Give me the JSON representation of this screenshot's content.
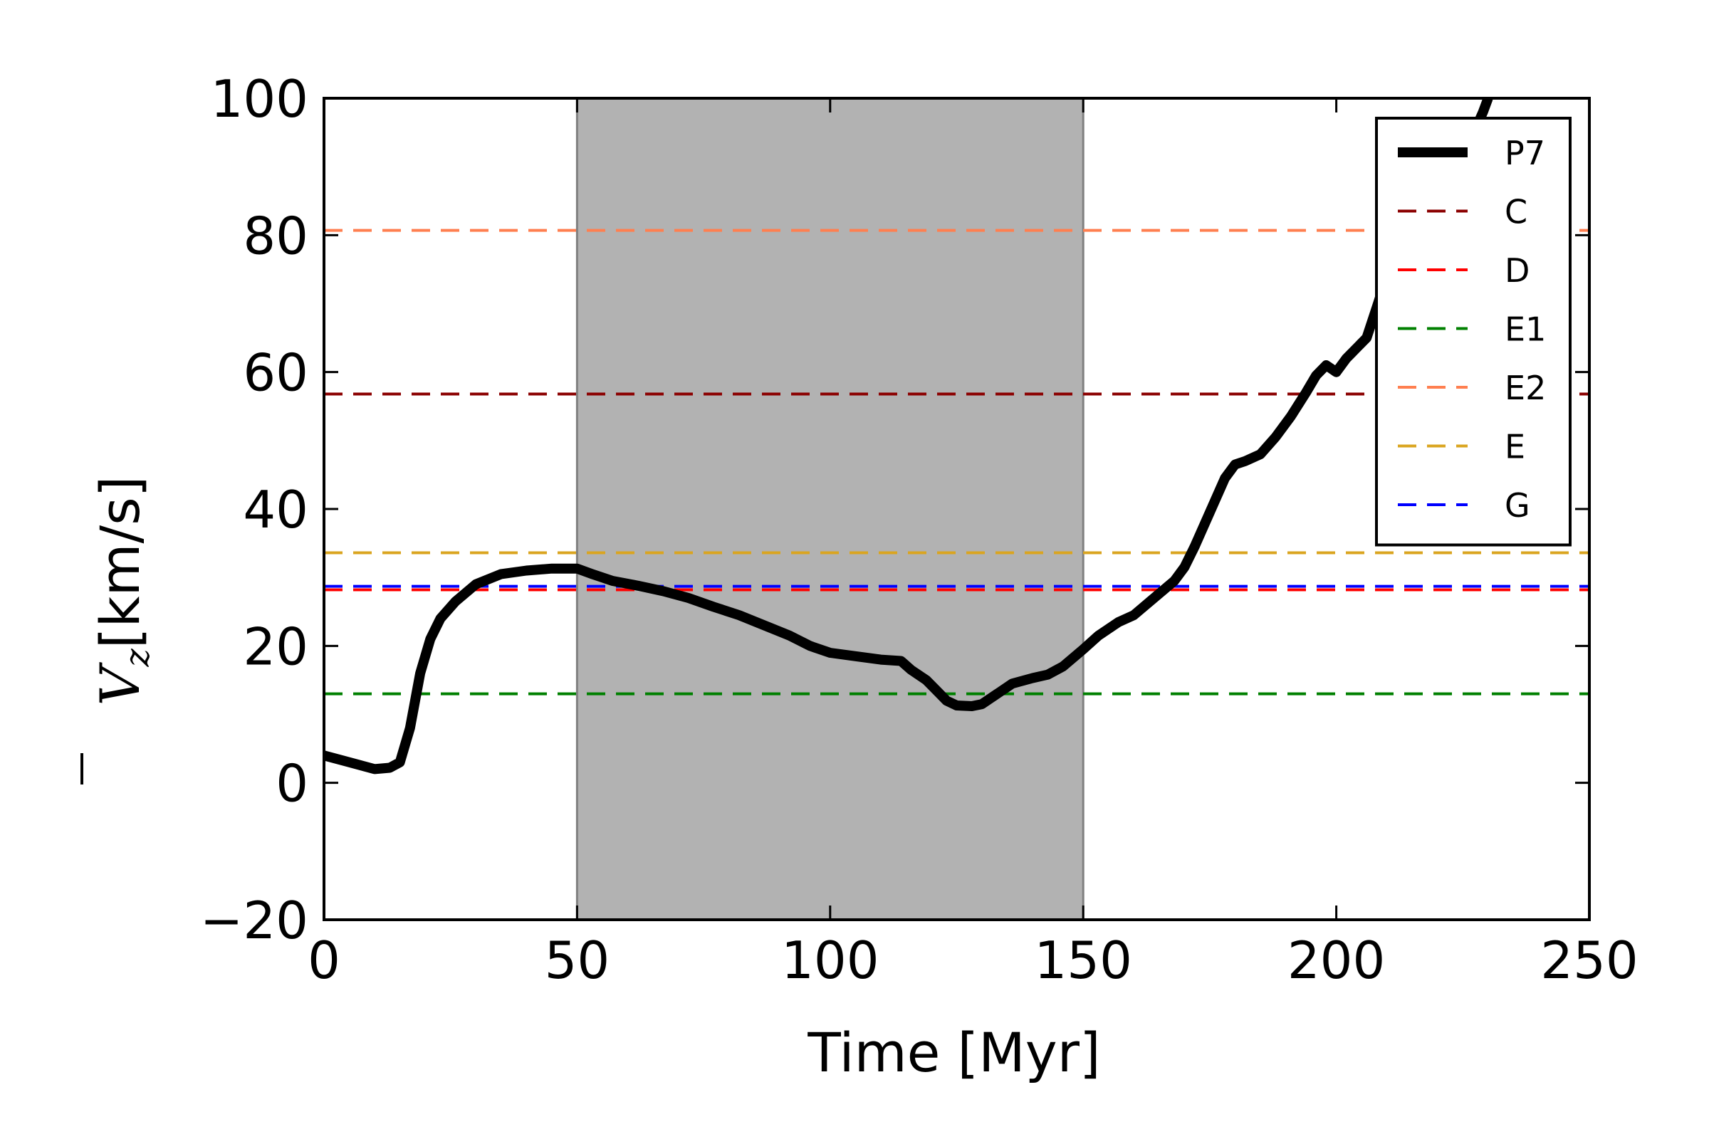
{
  "chart_data": {
    "type": "line",
    "xlabel": "Time [Myr]",
    "ylabel": {
      "symbol": "V",
      "subscript": "z",
      "unit": "[km/s]"
    },
    "xlim": [
      0,
      250
    ],
    "ylim": [
      -20,
      100
    ],
    "x_ticks": [
      0,
      50,
      100,
      150,
      200,
      250
    ],
    "y_ticks": [
      -20,
      0,
      20,
      40,
      60,
      80,
      100
    ],
    "x_tick_labels": [
      "0",
      "50",
      "100",
      "150",
      "200",
      "250"
    ],
    "y_tick_labels": [
      "−20",
      "0",
      "20",
      "40",
      "60",
      "80",
      "100"
    ],
    "grid": false,
    "legend_position": "top-right",
    "shaded_region": {
      "x": [
        50,
        150
      ],
      "color": "#b2b2b2"
    },
    "series": [
      {
        "name": "P7",
        "style": "solid",
        "color": "#000000",
        "x": [
          0,
          5,
          10,
          13,
          15,
          17,
          19,
          21,
          23,
          26,
          30,
          35,
          40,
          45,
          50,
          53,
          57,
          62,
          67,
          72,
          77,
          82,
          87,
          92,
          96,
          100,
          105,
          110,
          114,
          116,
          119,
          121,
          123,
          125,
          128,
          130,
          133,
          136,
          140,
          143,
          146,
          150,
          153,
          157,
          160,
          164,
          168,
          170,
          172,
          175,
          178,
          180,
          182,
          185,
          188,
          191,
          194,
          196,
          198,
          200,
          202,
          204,
          206,
          208,
          210,
          213,
          216,
          220,
          223,
          226,
          229,
          230
        ],
        "y": [
          4,
          3,
          2,
          2.2,
          3,
          8,
          16,
          21,
          24,
          26.5,
          29,
          30.5,
          31,
          31.3,
          31.3,
          30.5,
          29.5,
          28.8,
          28,
          27,
          25.7,
          24.5,
          23,
          21.5,
          20,
          19,
          18.5,
          18,
          17.8,
          16.5,
          15,
          13.5,
          12,
          11.3,
          11.2,
          11.5,
          13,
          14.5,
          15.3,
          15.8,
          17,
          19.5,
          21.5,
          23.5,
          24.5,
          27,
          29.5,
          31.5,
          34.5,
          39.5,
          44.5,
          46.5,
          47,
          48,
          50.5,
          53.5,
          57,
          59.5,
          61,
          60,
          62,
          63.5,
          65,
          69.5,
          74,
          78,
          81.5,
          85,
          88.5,
          93,
          98,
          100
        ]
      },
      {
        "name": "C",
        "style": "dashed",
        "color": "#8b0000",
        "y": 56.8
      },
      {
        "name": "D",
        "style": "dashed",
        "color": "#ff0000",
        "y": 28.2
      },
      {
        "name": "E1",
        "style": "dashed",
        "color": "#008000",
        "y": 13
      },
      {
        "name": "E2",
        "style": "dashed",
        "color": "#ff7f50",
        "y": 80.7
      },
      {
        "name": "E",
        "style": "dashed",
        "color": "#daa520",
        "y": 33.6
      },
      {
        "name": "G",
        "style": "dashed",
        "color": "#0000ff",
        "y": 28.7
      }
    ]
  }
}
